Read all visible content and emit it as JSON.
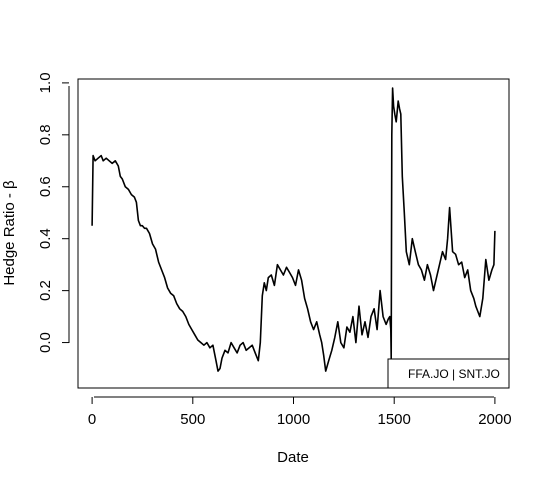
{
  "chart_data": {
    "type": "line",
    "title": "",
    "xlabel": "Date",
    "ylabel": "Hedge Ratio - β",
    "xlim": [
      -70,
      2070
    ],
    "ylim": [
      -0.175,
      1.015
    ],
    "x_ticks": [
      0,
      500,
      1000,
      1500,
      2000
    ],
    "x_tick_labels": [
      "0",
      "500",
      "1000",
      "1500",
      "2000"
    ],
    "y_ticks": [
      0.0,
      0.2,
      0.4,
      0.6,
      0.8,
      1.0
    ],
    "y_tick_labels": [
      "0.0",
      "0.2",
      "0.4",
      "0.6",
      "0.8",
      "1.0"
    ],
    "grid": false,
    "legend": {
      "text": "FFA.JO | SNT.JO",
      "placement": "bottom-right"
    },
    "series": [
      {
        "color": "#000000",
        "x": [
          0,
          5,
          15,
          30,
          45,
          55,
          70,
          85,
          100,
          115,
          130,
          140,
          150,
          165,
          180,
          195,
          210,
          220,
          230,
          240,
          250,
          260,
          270,
          285,
          300,
          315,
          330,
          345,
          360,
          375,
          390,
          405,
          420,
          435,
          450,
          465,
          480,
          495,
          510,
          525,
          540,
          555,
          570,
          585,
          600,
          615,
          625,
          635,
          645,
          660,
          675,
          690,
          705,
          720,
          735,
          750,
          765,
          780,
          795,
          810,
          825,
          835,
          845,
          855,
          865,
          875,
          890,
          905,
          920,
          935,
          950,
          965,
          980,
          995,
          1010,
          1025,
          1040,
          1055,
          1070,
          1085,
          1100,
          1115,
          1130,
          1140,
          1150,
          1160,
          1175,
          1190,
          1205,
          1220,
          1235,
          1250,
          1265,
          1280,
          1295,
          1310,
          1325,
          1340,
          1355,
          1370,
          1385,
          1400,
          1415,
          1430,
          1445,
          1460,
          1470,
          1478,
          1483,
          1485,
          1488,
          1492,
          1497,
          1503,
          1510,
          1515,
          1520,
          1527,
          1533,
          1540,
          1550,
          1560,
          1575,
          1590,
          1605,
          1620,
          1635,
          1650,
          1665,
          1680,
          1695,
          1710,
          1725,
          1740,
          1755,
          1765,
          1775,
          1790,
          1805,
          1820,
          1835,
          1850,
          1865,
          1880,
          1895,
          1905,
          1915,
          1925,
          1940,
          1955,
          1970,
          1985,
          1995,
          2000
        ],
        "y": [
          0.45,
          0.72,
          0.7,
          0.71,
          0.72,
          0.7,
          0.71,
          0.7,
          0.69,
          0.7,
          0.68,
          0.64,
          0.63,
          0.6,
          0.59,
          0.57,
          0.56,
          0.54,
          0.47,
          0.45,
          0.45,
          0.44,
          0.44,
          0.42,
          0.38,
          0.36,
          0.31,
          0.28,
          0.25,
          0.21,
          0.19,
          0.18,
          0.15,
          0.13,
          0.12,
          0.1,
          0.07,
          0.05,
          0.03,
          0.01,
          0.0,
          -0.01,
          0.0,
          -0.02,
          -0.01,
          -0.07,
          -0.11,
          -0.1,
          -0.06,
          -0.03,
          -0.04,
          0.0,
          -0.02,
          -0.04,
          -0.01,
          0.0,
          -0.03,
          -0.02,
          -0.01,
          -0.04,
          -0.07,
          0.0,
          0.18,
          0.23,
          0.2,
          0.25,
          0.26,
          0.22,
          0.3,
          0.28,
          0.26,
          0.29,
          0.27,
          0.25,
          0.22,
          0.28,
          0.24,
          0.17,
          0.13,
          0.08,
          0.05,
          0.08,
          0.03,
          0.0,
          -0.05,
          -0.11,
          -0.07,
          -0.03,
          0.02,
          0.08,
          0.0,
          -0.02,
          0.06,
          0.04,
          0.1,
          0.0,
          0.14,
          0.03,
          0.08,
          0.02,
          0.1,
          0.13,
          0.05,
          0.2,
          0.1,
          0.07,
          0.09,
          0.1,
          0.05,
          -0.06,
          0.8,
          0.98,
          0.91,
          0.88,
          0.85,
          0.89,
          0.93,
          0.9,
          0.88,
          0.64,
          0.5,
          0.35,
          0.3,
          0.4,
          0.35,
          0.3,
          0.28,
          0.24,
          0.3,
          0.26,
          0.2,
          0.25,
          0.3,
          0.35,
          0.32,
          0.4,
          0.52,
          0.35,
          0.34,
          0.3,
          0.31,
          0.25,
          0.28,
          0.2,
          0.17,
          0.14,
          0.12,
          0.1,
          0.17,
          0.32,
          0.24,
          0.28,
          0.3,
          0.43
        ]
      }
    ]
  }
}
